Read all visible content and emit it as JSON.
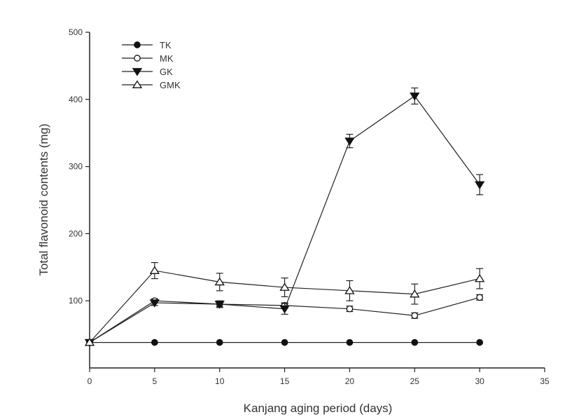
{
  "chart_data": {
    "type": "line",
    "xlabel": "Kanjang aging period (days)",
    "ylabel": "Total flavonoid contents (mg)",
    "xlim": [
      0,
      35
    ],
    "ylim": [
      0,
      500
    ],
    "xticks": [
      "0",
      "5",
      "10",
      "15",
      "20",
      "25",
      "30",
      "35"
    ],
    "yticks": [
      "100",
      "200",
      "300",
      "400",
      "500"
    ],
    "legend_position": "top-left",
    "grid": false,
    "x": [
      0,
      5,
      10,
      15,
      20,
      25,
      30
    ],
    "series": [
      {
        "name": "TK",
        "marker": "filled-circle",
        "values": [
          38,
          38,
          38,
          38,
          38,
          38,
          38
        ],
        "errors": [
          0,
          0,
          0,
          0,
          0,
          0,
          0
        ]
      },
      {
        "name": "MK",
        "marker": "open-circle",
        "values": [
          38,
          100,
          95,
          93,
          88,
          78,
          105
        ],
        "errors": [
          0,
          3,
          4,
          4,
          4,
          4,
          4
        ]
      },
      {
        "name": "GK",
        "marker": "filled-triangle-down",
        "values": [
          38,
          97,
          95,
          88,
          338,
          405,
          273
        ],
        "errors": [
          0,
          4,
          5,
          8,
          10,
          12,
          15
        ]
      },
      {
        "name": "GMK",
        "marker": "open-triangle-up",
        "values": [
          38,
          145,
          128,
          120,
          115,
          110,
          133
        ],
        "errors": [
          0,
          12,
          13,
          14,
          15,
          15,
          15
        ]
      }
    ]
  }
}
